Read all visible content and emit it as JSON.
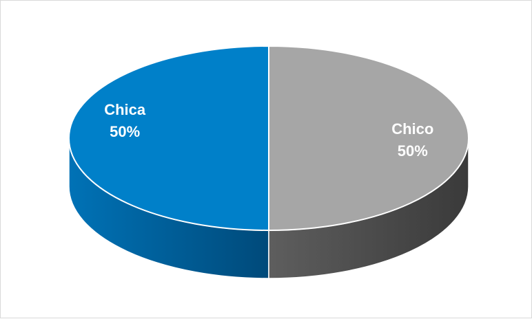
{
  "chart_data": {
    "type": "pie",
    "title": "",
    "categories": [
      "Chica",
      "Chico"
    ],
    "values": [
      50,
      50
    ],
    "value_labels": [
      "50%",
      "50%"
    ],
    "colors": {
      "Chica": "#0080c9",
      "Chico": "#a6a6a6",
      "Chica_side": "#004f82",
      "Chico_side": "#4d4d4d",
      "separator": "#ffffff",
      "background": "#ffffff",
      "frame_border": "#d9d9d9"
    },
    "legend": "none",
    "style": "3d-tilted"
  }
}
